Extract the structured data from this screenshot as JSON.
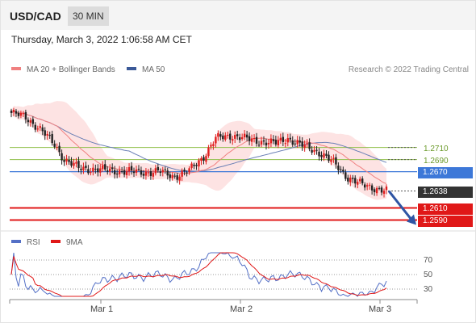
{
  "header": {
    "symbol": "USD/CAD",
    "timeframe": "30 MIN"
  },
  "date_text": "Thursday, March 3, 2022 1:06:58 AM CET",
  "legend": {
    "ma20": "MA 20 + Bollinger Bands",
    "ma50": "MA 50",
    "credit": "Research © 2022 Trading Central"
  },
  "rsi_legend": {
    "rsi": "RSI",
    "ma": "9MA"
  },
  "colors": {
    "bull": "#e01e1e",
    "bear": "#222222",
    "ma20": "#f08080",
    "ma50": "#6a7fb5",
    "resistance": "#8fbf4a",
    "pivot": "#3d78d8",
    "support": "#e01818",
    "rsi": "#5470c6",
    "rsi_ma": "#e01818"
  },
  "chart_data": {
    "type": "candlestick",
    "price_axis": {
      "ylim": [
        1.2576,
        1.2827
      ]
    },
    "levels": [
      {
        "label": "1.2710",
        "value": 1.271,
        "kind": "resistance"
      },
      {
        "label": "1.2690",
        "value": 1.269,
        "kind": "resistance"
      },
      {
        "label": "1.2670",
        "value": 1.267,
        "kind": "pivot"
      },
      {
        "label": "1.2638",
        "value": 1.2638,
        "kind": "last"
      },
      {
        "label": "1.2610",
        "value": 1.261,
        "kind": "support"
      },
      {
        "label": "1.2590",
        "value": 1.259,
        "kind": "support"
      }
    ],
    "x_ticks": [
      "Mar 1",
      "Mar 2",
      "Mar 3"
    ],
    "rsi_axis": {
      "ylim": [
        20,
        80
      ],
      "ticks": [
        "70",
        "50",
        "30"
      ]
    },
    "forecast_arrow": {
      "from": 1.2638,
      "to": 1.259
    }
  }
}
